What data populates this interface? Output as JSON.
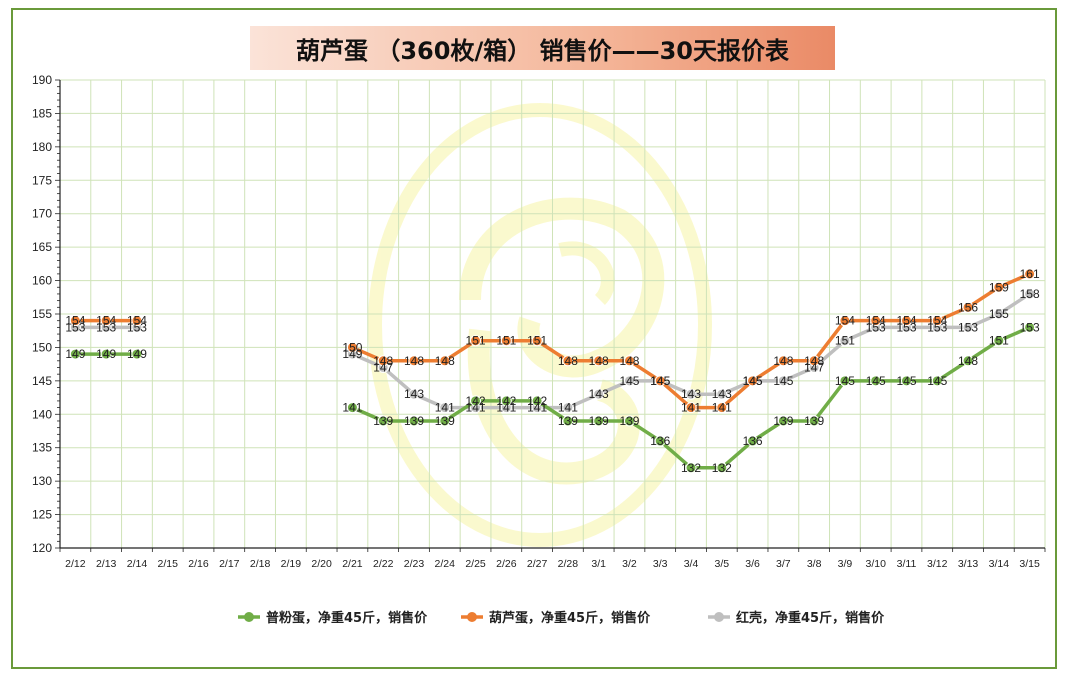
{
  "chart_data": {
    "type": "line",
    "title": "葫芦蛋 （360枚/箱） 销售价——30天报价表",
    "categories": [
      "2/12",
      "2/13",
      "2/14",
      "2/15",
      "2/16",
      "2/17",
      "2/18",
      "2/19",
      "2/20",
      "2/21",
      "2/22",
      "2/23",
      "2/24",
      "2/25",
      "2/26",
      "2/27",
      "2/28",
      "3/1",
      "3/2",
      "3/3",
      "3/4",
      "3/5",
      "3/6",
      "3/7",
      "3/8",
      "3/9",
      "3/10",
      "3/11",
      "3/12",
      "3/13",
      "3/14",
      "3/15"
    ],
    "ylim": [
      120,
      190
    ],
    "yticks": [
      120,
      125,
      130,
      135,
      140,
      145,
      150,
      155,
      160,
      165,
      170,
      175,
      180,
      185,
      190
    ],
    "grid": true,
    "legend_position": "bottom",
    "series": [
      {
        "name": "普粉蛋，净重45斤，销售价",
        "color": "#70ad47",
        "values": [
          149,
          149,
          149,
          null,
          null,
          null,
          null,
          null,
          null,
          141,
          139,
          139,
          139,
          142,
          142,
          142,
          139,
          139,
          139,
          136,
          132,
          132,
          136,
          139,
          139,
          145,
          145,
          145,
          145,
          148,
          151,
          153
        ]
      },
      {
        "name": "葫芦蛋，净重45斤，销售价",
        "color": "#ed7d31",
        "values": [
          154,
          154,
          154,
          null,
          null,
          null,
          null,
          null,
          null,
          150,
          148,
          148,
          148,
          151,
          151,
          151,
          148,
          148,
          148,
          145,
          141,
          141,
          145,
          148,
          148,
          154,
          154,
          154,
          154,
          156,
          159,
          161
        ]
      },
      {
        "name": "红壳，净重45斤，销售价",
        "color": "#bfbfbf",
        "values": [
          153,
          153,
          153,
          null,
          null,
          null,
          null,
          null,
          null,
          149,
          147,
          143,
          141,
          141,
          141,
          141,
          141,
          143,
          145,
          145,
          143,
          143,
          145,
          145,
          147,
          151,
          153,
          153,
          153,
          153,
          155,
          158
        ]
      }
    ]
  }
}
